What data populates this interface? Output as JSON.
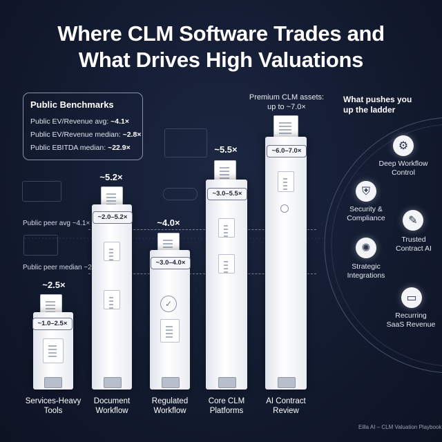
{
  "title_line1": "Where CLM Software Trades and",
  "title_line2": "What Drives High Valuations",
  "benchmarks": {
    "heading": "Public Benchmarks",
    "items": [
      {
        "label": "Public EV/Revenue avg:",
        "value": "~4.1×"
      },
      {
        "label": "Public EV/Revenue median:",
        "value": "~2.8×"
      },
      {
        "label": "Public EBITDA median:",
        "value": "~22.9×"
      }
    ]
  },
  "reference_lines": {
    "avg_label": "Public peer avg ~4.1×",
    "median_label": "Public peer median ~2.8×"
  },
  "premium_note": {
    "line1": "Premium CLM assets:",
    "line2": "up to ~7.0×"
  },
  "columns": [
    {
      "label_line1": "Services-Heavy",
      "label_line2": "Tools",
      "top_value": "~2.5×",
      "range": "~1.0–2.5×"
    },
    {
      "label_line1": "Document",
      "label_line2": "Workflow",
      "top_value": "~5.2×",
      "range": "~2.0–5.2×"
    },
    {
      "label_line1": "Regulated",
      "label_line2": "Workflow",
      "top_value": "~4.0×",
      "range": "~3.0–4.0×"
    },
    {
      "label_line1": "Core CLM",
      "label_line2": "Platforms",
      "top_value": "~5.5×",
      "range": "~3.0–5.5×"
    },
    {
      "label_line1": "AI Contract",
      "label_line2": "Review",
      "top_value": "",
      "range": "~6.0–7.0×"
    }
  ],
  "drivers": {
    "heading_line1": "What pushes you",
    "heading_line2": "up the ladder",
    "items": [
      {
        "line1": "Deep Workflow",
        "line2": "Control",
        "icon": "workflow-icon"
      },
      {
        "line1": "Security &",
        "line2": "Compliance",
        "icon": "shield-icon"
      },
      {
        "line1": "Trusted",
        "line2": "Contract AI",
        "icon": "ai-document-icon"
      },
      {
        "line1": "Strategic",
        "line2": "Integrations",
        "icon": "network-icon"
      },
      {
        "line1": "Recurring",
        "line2": "SaaS Revenue",
        "icon": "credit-card-icon"
      }
    ]
  },
  "footer_credit": "Eilla AI – CLM Valuation Playbook"
}
